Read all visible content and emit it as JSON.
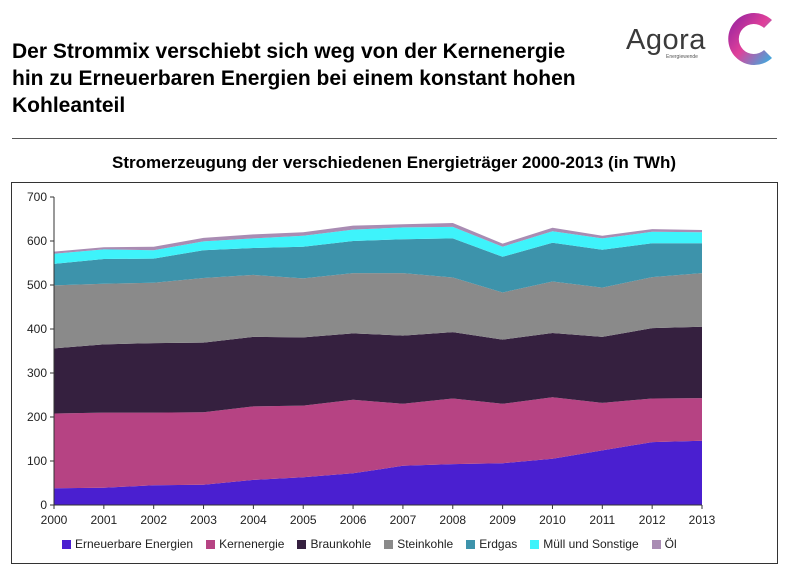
{
  "headline": "Der Strommix verschiebt sich weg von der Kernenergie hin zu Erneuerbaren Energien bei einem konstant hohen Kohleanteil",
  "logo": {
    "name": "Agora",
    "sub": "Energiewende"
  },
  "chart_data": {
    "type": "area",
    "stacked": true,
    "title": "Stromerzeugung der verschiedenen Energieträger 2000-2013 (in TWh)",
    "xlabel": "",
    "ylabel": "",
    "x": [
      2000,
      2001,
      2002,
      2003,
      2004,
      2005,
      2006,
      2007,
      2008,
      2009,
      2010,
      2011,
      2012,
      2013
    ],
    "ylim": [
      0,
      700
    ],
    "yticks": [
      0,
      100,
      200,
      300,
      400,
      500,
      600,
      700
    ],
    "grid": false,
    "legend_position": "bottom",
    "series": [
      {
        "name": "Erneuerbare Energien",
        "color": "#4a1fd0",
        "values": [
          38,
          39,
          45,
          46,
          57,
          63,
          72,
          89,
          93,
          95,
          105,
          124,
          143,
          146
        ]
      },
      {
        "name": "Kernenergie",
        "color": "#b64383",
        "values": [
          170,
          171,
          165,
          165,
          167,
          163,
          167,
          141,
          149,
          135,
          140,
          108,
          99,
          97
        ]
      },
      {
        "name": "Braunkohle",
        "color": "#35203f",
        "values": [
          148,
          155,
          158,
          158,
          158,
          155,
          151,
          155,
          151,
          146,
          146,
          150,
          160,
          162
        ]
      },
      {
        "name": "Steinkohle",
        "color": "#8a8a8a",
        "values": [
          143,
          138,
          137,
          147,
          141,
          134,
          137,
          142,
          124,
          107,
          117,
          112,
          116,
          122
        ]
      },
      {
        "name": "Erdgas",
        "color": "#3d93ab",
        "values": [
          49,
          56,
          55,
          63,
          61,
          72,
          73,
          77,
          89,
          81,
          88,
          86,
          77,
          68
        ]
      },
      {
        "name": "Müll und Sonstige",
        "color": "#3ef3fb",
        "values": [
          23,
          22,
          19,
          20,
          22,
          25,
          26,
          27,
          26,
          23,
          26,
          26,
          26,
          25
        ]
      },
      {
        "name": "Öl",
        "color": "#a98cb3",
        "values": [
          5,
          5,
          8,
          8,
          9,
          8,
          9,
          7,
          9,
          7,
          8,
          6,
          6,
          5
        ]
      }
    ]
  }
}
